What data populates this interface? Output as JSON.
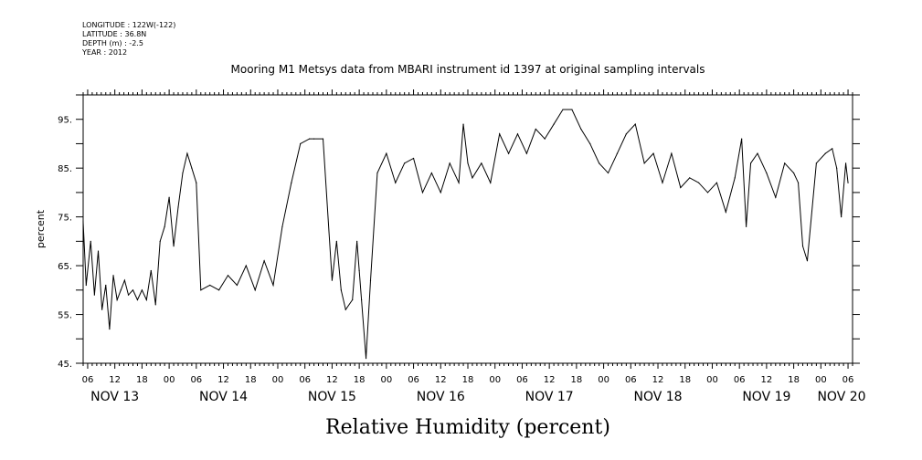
{
  "metadata": {
    "longitude": "LONGITUDE : 122W(-122)",
    "latitude": "LATITUDE : 36.8N",
    "depth": "DEPTH (m) : -2.5",
    "year": "YEAR : 2012"
  },
  "chart_data": {
    "type": "line",
    "title": "Mooring M1 Metsys data from MBARI instrument id 1397 at original sampling intervals",
    "xlabel": "Relative Humidity (percent)",
    "ylabel": "percent",
    "ylim": [
      45,
      100
    ],
    "yticks": [
      45,
      55,
      65,
      75,
      85,
      95
    ],
    "ytick_labels": [
      "45.",
      "55.",
      "65.",
      "75.",
      "85.",
      "95."
    ],
    "xlim": [
      "2012-11-13 05:00",
      "2012-11-20 07:00"
    ],
    "x_hour_ticks": [
      "06",
      "12",
      "18",
      "00",
      "06",
      "12",
      "18",
      "00",
      "06",
      "12",
      "18",
      "00",
      "06",
      "12",
      "18",
      "00",
      "06",
      "12",
      "18",
      "00",
      "06",
      "12",
      "18",
      "00",
      "06",
      "12",
      "18",
      "00",
      "06"
    ],
    "x_day_labels": [
      "NOV 13",
      "NOV 14",
      "NOV 15",
      "NOV 16",
      "NOV 17",
      "NOV 18",
      "NOV 19",
      "NOV 20"
    ],
    "grid": false,
    "series": [
      {
        "x": [
          "2012-11-13 05:00",
          "2012-11-13 05:40",
          "2012-11-13 06:40",
          "2012-11-13 07:30",
          "2012-11-13 08:20",
          "2012-11-13 09:10",
          "2012-11-13 10:00",
          "2012-11-13 10:50",
          "2012-11-13 11:40",
          "2012-11-13 12:30",
          "2012-11-13 13:20",
          "2012-11-13 14:10",
          "2012-11-13 15:00",
          "2012-11-13 16:00",
          "2012-11-13 17:00",
          "2012-11-13 18:00",
          "2012-11-13 19:00",
          "2012-11-13 20:00",
          "2012-11-13 21:00",
          "2012-11-13 22:00",
          "2012-11-13 23:00",
          "2012-11-14 00:00",
          "2012-11-14 01:00",
          "2012-11-14 02:00",
          "2012-11-14 03:00",
          "2012-11-14 04:00",
          "2012-11-14 05:00",
          "2012-11-14 06:00",
          "2012-11-14 07:00",
          "2012-11-14 09:00",
          "2012-11-14 11:00",
          "2012-11-14 13:00",
          "2012-11-14 15:00",
          "2012-11-14 17:00",
          "2012-11-14 19:00",
          "2012-11-14 21:00",
          "2012-11-14 23:00",
          "2012-11-15 01:00",
          "2012-11-15 03:00",
          "2012-11-15 05:00",
          "2012-11-15 07:00",
          "2012-11-15 08:00",
          "2012-11-15 10:00",
          "2012-11-15 12:00",
          "2012-11-15 13:00",
          "2012-11-15 14:00",
          "2012-11-15 15:00",
          "2012-11-15 16:30",
          "2012-11-15 17:30",
          "2012-11-15 18:00",
          "2012-11-15 18:30",
          "2012-11-15 19:30",
          "2012-11-15 20:30",
          "2012-11-15 22:00",
          "2012-11-16 00:00",
          "2012-11-16 02:00",
          "2012-11-16 04:00",
          "2012-11-16 06:00",
          "2012-11-16 08:00",
          "2012-11-16 10:00",
          "2012-11-16 12:00",
          "2012-11-16 14:00",
          "2012-11-16 16:00",
          "2012-11-16 17:00",
          "2012-11-16 18:00",
          "2012-11-16 19:00",
          "2012-11-16 21:00",
          "2012-11-16 23:00",
          "2012-11-17 01:00",
          "2012-11-17 03:00",
          "2012-11-17 05:00",
          "2012-11-17 07:00",
          "2012-11-17 09:00",
          "2012-11-17 11:00",
          "2012-11-17 13:00",
          "2012-11-17 15:00",
          "2012-11-17 17:00",
          "2012-11-17 19:00",
          "2012-11-17 21:00",
          "2012-11-17 23:00",
          "2012-11-18 01:00",
          "2012-11-18 03:00",
          "2012-11-18 05:00",
          "2012-11-18 07:00",
          "2012-11-18 09:00",
          "2012-11-18 11:00",
          "2012-11-18 13:00",
          "2012-11-18 15:00",
          "2012-11-18 17:00",
          "2012-11-18 19:00",
          "2012-11-18 21:00",
          "2012-11-18 23:00",
          "2012-11-19 01:00",
          "2012-11-19 03:00",
          "2012-11-19 05:00",
          "2012-11-19 06:30",
          "2012-11-19 07:30",
          "2012-11-19 08:30",
          "2012-11-19 10:00",
          "2012-11-19 12:00",
          "2012-11-19 14:00",
          "2012-11-19 16:00",
          "2012-11-19 18:00",
          "2012-11-19 19:00",
          "2012-11-19 20:00",
          "2012-11-19 21:00",
          "2012-11-19 23:00",
          "2012-11-20 01:00",
          "2012-11-20 02:30",
          "2012-11-20 03:30",
          "2012-11-20 04:30",
          "2012-11-20 05:30",
          "2012-11-20 06:00"
        ],
        "values": [
          74,
          61,
          70,
          59,
          68,
          56,
          61,
          52,
          63,
          58,
          60,
          62,
          59,
          60,
          58,
          60,
          58,
          64,
          57,
          70,
          73,
          79,
          69,
          77,
          84,
          88,
          85,
          82,
          60,
          61,
          60,
          63,
          61,
          65,
          60,
          66,
          61,
          73,
          82,
          90,
          91,
          91,
          91,
          62,
          70,
          60,
          56,
          58,
          70,
          64,
          58,
          46,
          62,
          84,
          88,
          82,
          86,
          87,
          80,
          84,
          80,
          86,
          82,
          94,
          86,
          83,
          86,
          82,
          92,
          88,
          92,
          88,
          93,
          91,
          94,
          97,
          97,
          93,
          90,
          86,
          84,
          88,
          92,
          94,
          86,
          88,
          82,
          88,
          81,
          83,
          82,
          80,
          82,
          76,
          83,
          91,
          73,
          86,
          88,
          84,
          79,
          86,
          84,
          82,
          69,
          66,
          86,
          88,
          89,
          85,
          75,
          86,
          82
        ]
      }
    ]
  }
}
